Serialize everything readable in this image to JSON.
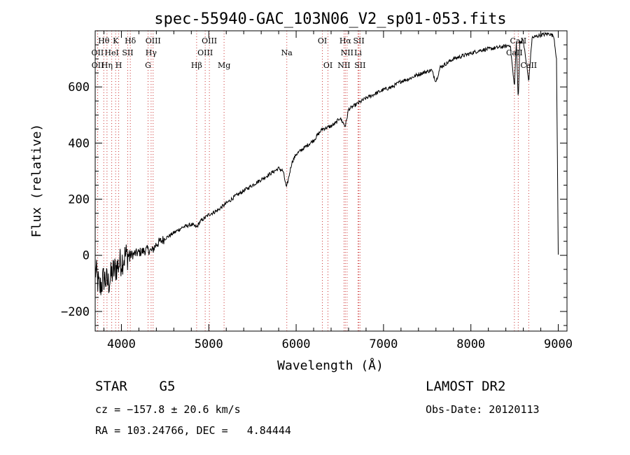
{
  "chart_data": {
    "type": "line",
    "title": "spec-55940-GAC_103N06_V2_sp01-053.fits",
    "xlabel": "Wavelength (Å)",
    "ylabel": "Flux (relative)",
    "xlim": [
      3700,
      9100
    ],
    "ylim": [
      -270,
      800
    ],
    "x_ticks": [
      4000,
      5000,
      6000,
      7000,
      8000,
      9000
    ],
    "x_tick_labels": [
      "4000",
      "5000",
      "6000",
      "7000",
      "8000",
      "9000"
    ],
    "y_ticks": [
      -200,
      0,
      200,
      400,
      600
    ],
    "y_tick_labels": [
      "−200",
      "0",
      "200",
      "400",
      "600"
    ],
    "grid": false,
    "series": [
      {
        "x": [
          3700,
          3750,
          3800,
          3850,
          3900,
          3950,
          4000,
          4050,
          4100,
          4150,
          4200,
          4250,
          4300,
          4350,
          4400,
          4500,
          4600,
          4700,
          4800,
          4861,
          4900,
          5000,
          5100,
          5200,
          5300,
          5400,
          5500,
          5600,
          5700,
          5800,
          5850,
          5890,
          5950,
          6000,
          6100,
          6200,
          6300,
          6400,
          6450,
          6500,
          6563,
          6600,
          6700,
          6800,
          6900,
          7000,
          7100,
          7200,
          7300,
          7400,
          7500,
          7550,
          7600,
          7650,
          7700,
          7800,
          7900,
          8000,
          8100,
          8200,
          8300,
          8400,
          8450,
          8498,
          8520,
          8542,
          8560,
          8600,
          8662,
          8700,
          8800,
          8900,
          8950,
          8980,
          9000
        ],
        "y": [
          -50,
          -120,
          -80,
          -100,
          -60,
          -40,
          -20,
          0,
          0,
          5,
          10,
          15,
          20,
          15,
          40,
          60,
          80,
          100,
          110,
          100,
          120,
          145,
          160,
          185,
          210,
          230,
          250,
          270,
          290,
          310,
          300,
          240,
          330,
          360,
          385,
          410,
          450,
          460,
          470,
          490,
          460,
          520,
          540,
          560,
          575,
          590,
          600,
          620,
          630,
          645,
          655,
          660,
          620,
          670,
          680,
          700,
          710,
          720,
          730,
          735,
          740,
          745,
          750,
          600,
          760,
          550,
          760,
          765,
          620,
          775,
          785,
          790,
          780,
          700,
          0
        ]
      }
    ],
    "lines": [
      {
        "label": "Hθ",
        "wavelength": 3798,
        "row": 1
      },
      {
        "label": "K",
        "wavelength": 3934,
        "row": 1
      },
      {
        "label": "Hδ",
        "wavelength": 4102,
        "row": 1
      },
      {
        "label": "OIII",
        "wavelength": 4363,
        "row": 1
      },
      {
        "label": "OIII",
        "wavelength": 5007,
        "row": 1
      },
      {
        "label": "OI",
        "wavelength": 6300,
        "row": 1
      },
      {
        "label": "Hα",
        "wavelength": 6563,
        "row": 1
      },
      {
        "label": "SII",
        "wavelength": 6717,
        "row": 1
      },
      {
        "label": "CaII",
        "wavelength": 8542,
        "row": 1
      },
      {
        "label": "OII",
        "wavelength": 3727,
        "row": 2
      },
      {
        "label": "HeI",
        "wavelength": 3889,
        "row": 2
      },
      {
        "label": "SII",
        "wavelength": 4072,
        "row": 2
      },
      {
        "label": "Hγ",
        "wavelength": 4340,
        "row": 2
      },
      {
        "label": "OIII",
        "wavelength": 4959,
        "row": 2
      },
      {
        "label": "Na",
        "wavelength": 5893,
        "row": 2
      },
      {
        "label": "NII",
        "wavelength": 6583,
        "row": 2
      },
      {
        "label": "Li",
        "wavelength": 6708,
        "row": 2
      },
      {
        "label": "CaII",
        "wavelength": 8498,
        "row": 2
      },
      {
        "label": "OII",
        "wavelength": 3729,
        "row": 3
      },
      {
        "label": "Hη",
        "wavelength": 3835,
        "row": 3
      },
      {
        "label": "H",
        "wavelength": 3969,
        "row": 3
      },
      {
        "label": "G",
        "wavelength": 4305,
        "row": 3
      },
      {
        "label": "Hβ",
        "wavelength": 4861,
        "row": 3
      },
      {
        "label": "Mg",
        "wavelength": 5175,
        "row": 3
      },
      {
        "label": "OI",
        "wavelength": 6364,
        "row": 3
      },
      {
        "label": "NII",
        "wavelength": 6548,
        "row": 3
      },
      {
        "label": "SII",
        "wavelength": 6731,
        "row": 3
      },
      {
        "label": "CaII",
        "wavelength": 8662,
        "row": 3
      }
    ]
  },
  "info": {
    "classification": "STAR    G5",
    "survey": "LAMOST DR2",
    "redshift": "cz = −157.8 ± 20.6 km/s",
    "obs_date": "Obs-Date: 20120113",
    "coords": "RA = 103.24766, DEC =   4.84444"
  }
}
